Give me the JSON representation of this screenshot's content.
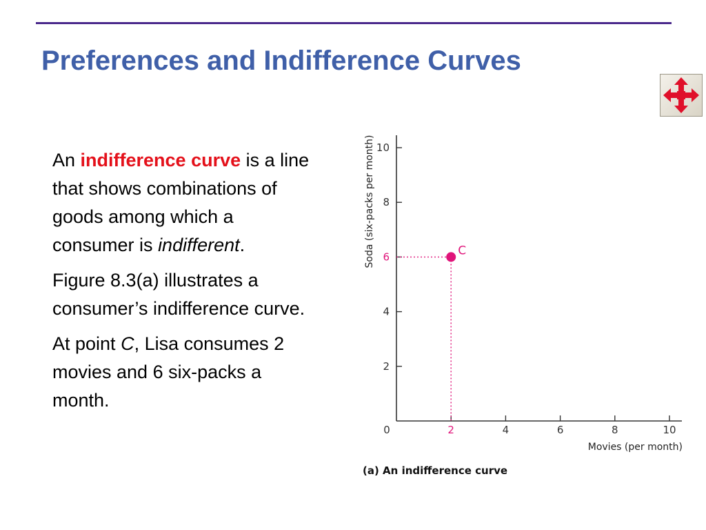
{
  "slide": {
    "title": "Preferences and Indifference Curves",
    "nav_icon": "four-way-move-arrows-icon",
    "paragraph1": {
      "prefix": "An ",
      "term": "indifference curve",
      "middle": " is a line that shows combinations of goods among which a consumer is ",
      "emphasis": "indifferent",
      "suffix": "."
    },
    "paragraph2": "Figure 8.3(a) illustrates a consumer’s indifference curve.",
    "paragraph3": {
      "prefix": "At point ",
      "point": "C",
      "suffix": ", Lisa consumes 2 movies and 6 six-packs a month."
    }
  },
  "colors": {
    "title": "#3f5fa8",
    "rule": "#4b2a8c",
    "term_highlight": "#e4101a",
    "point": "#e0147a",
    "axis": "#333333"
  },
  "chart_data": {
    "type": "scatter",
    "caption": "(a) An indifference curve",
    "xlabel": "Movies (per month)",
    "ylabel": "Soda (six-packs per month)",
    "xlim": [
      0,
      10
    ],
    "ylim": [
      0,
      10
    ],
    "xticks": [
      "0",
      "2",
      "4",
      "6",
      "8",
      "10"
    ],
    "yticks": [
      "2",
      "4",
      "6",
      "8",
      "10"
    ],
    "grid": false,
    "points": [
      {
        "label": "C",
        "x": 2,
        "y": 6
      }
    ]
  }
}
